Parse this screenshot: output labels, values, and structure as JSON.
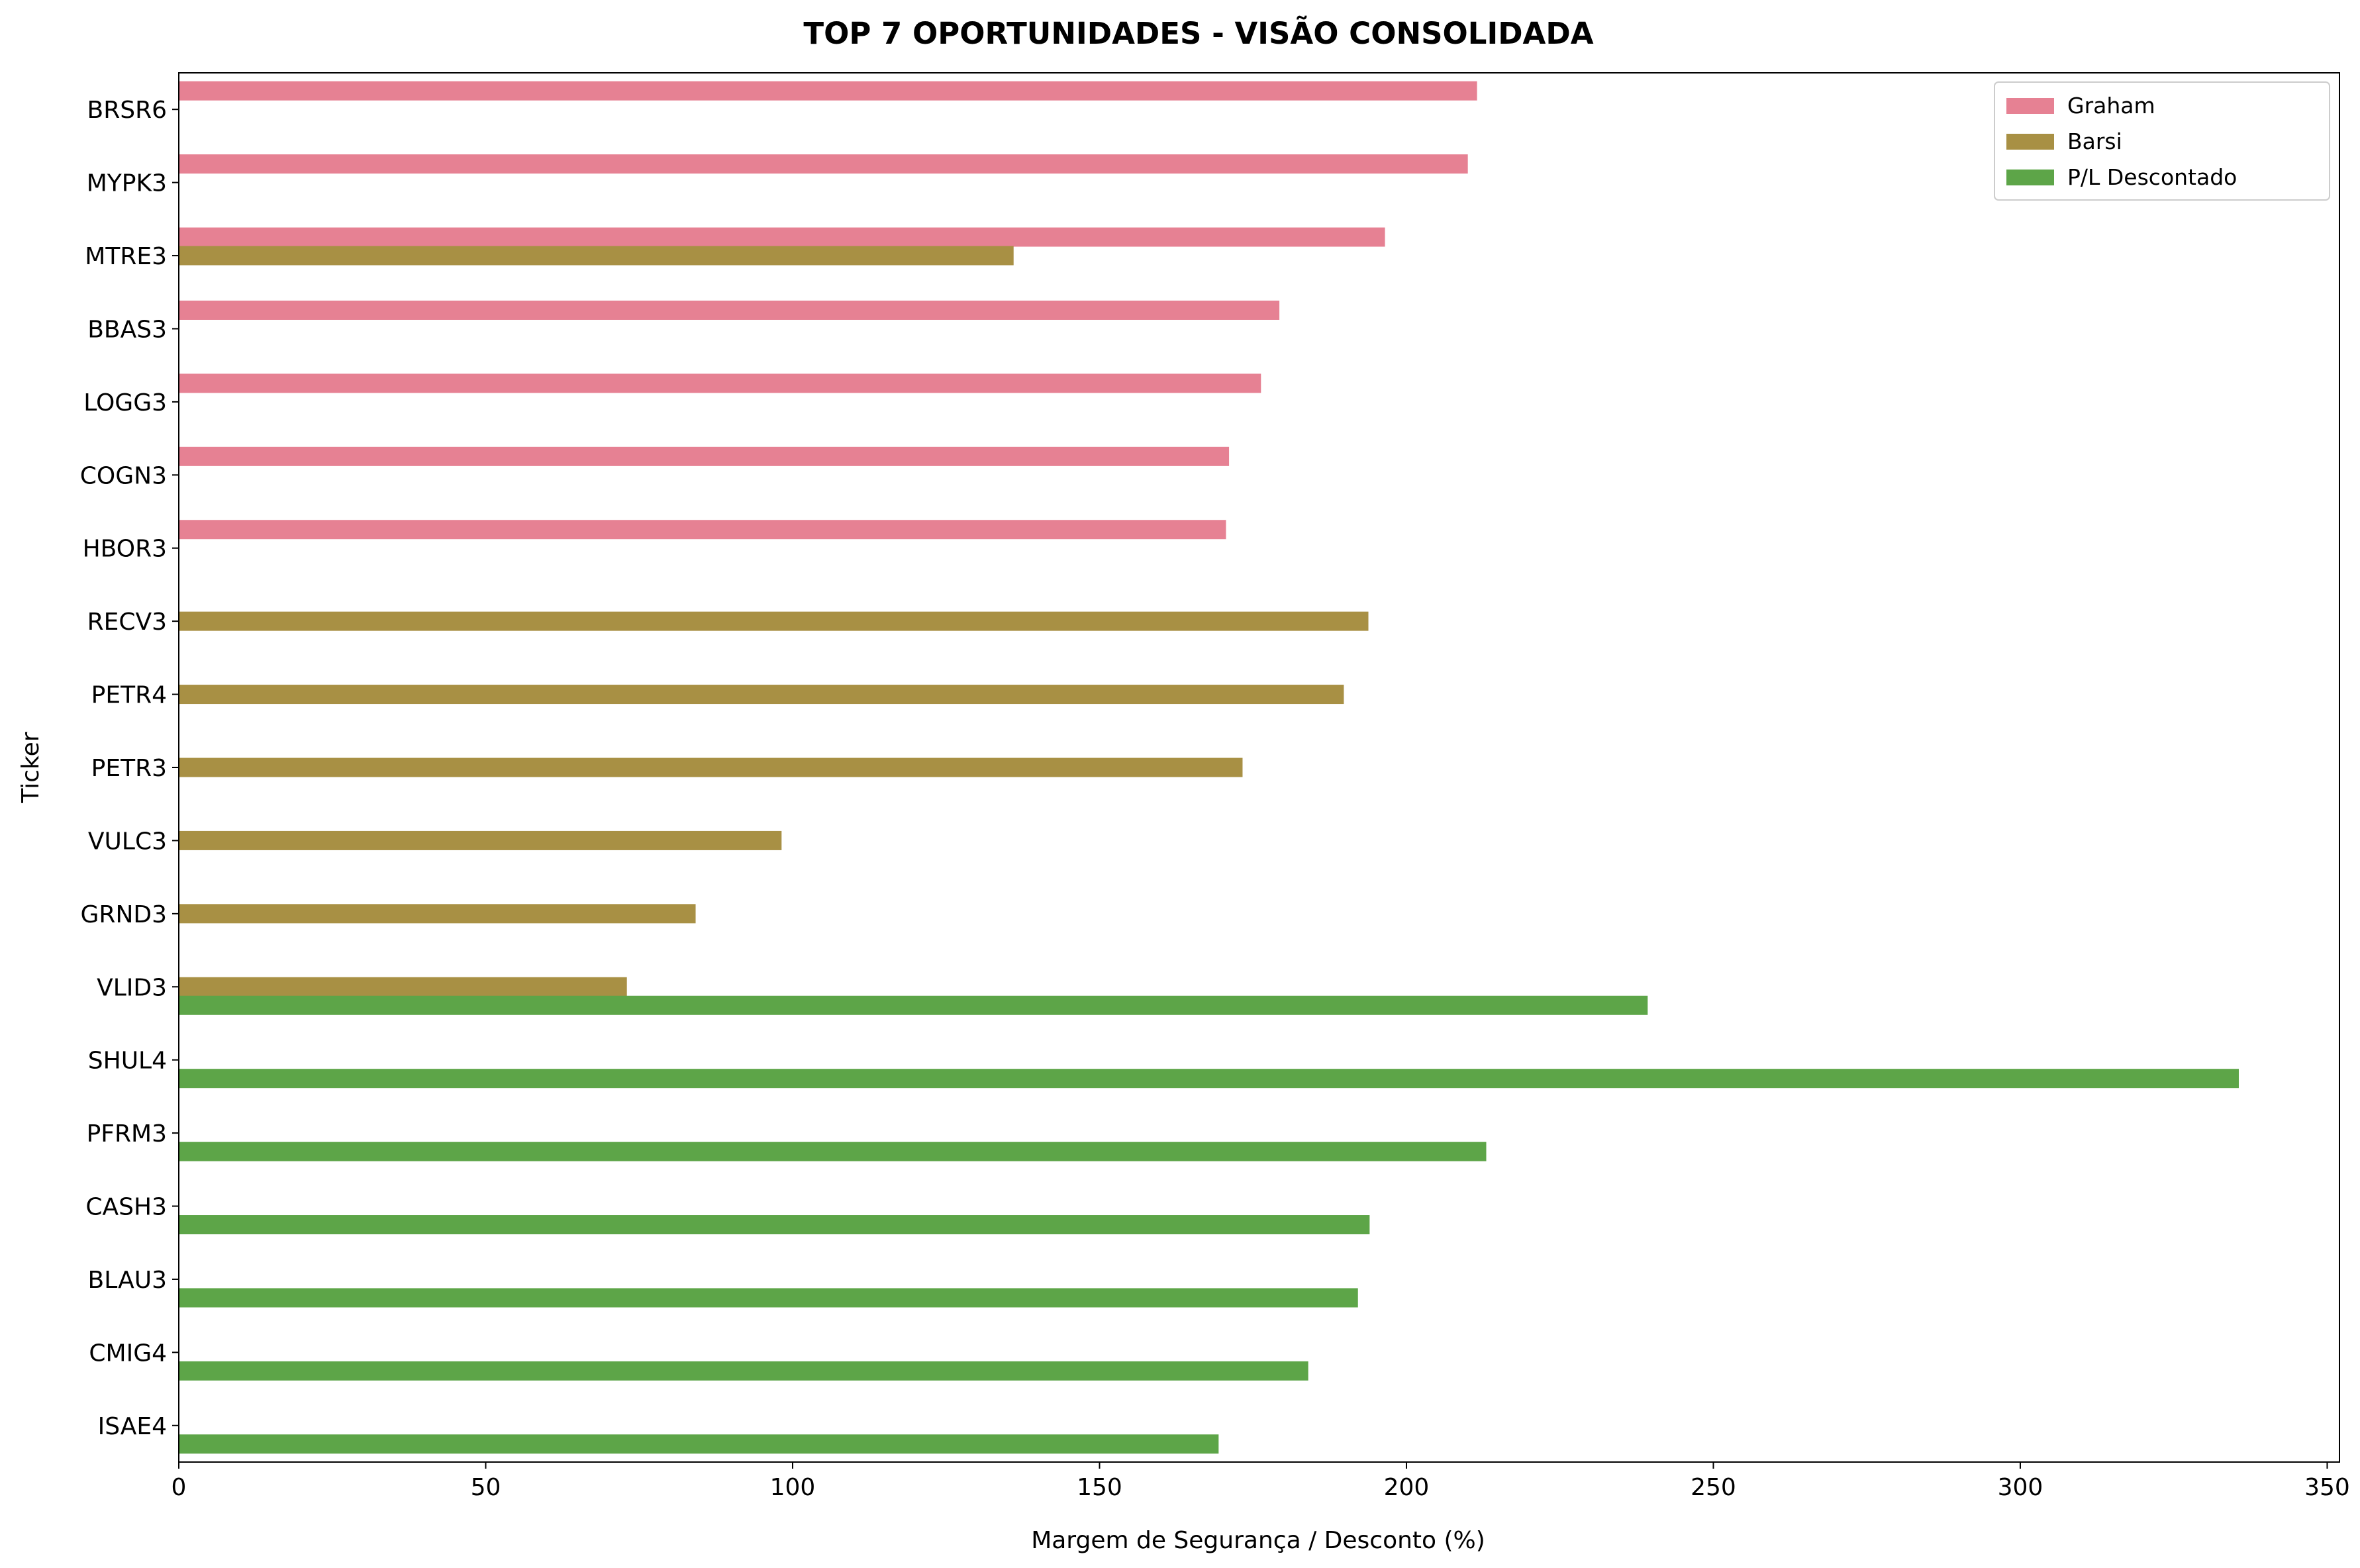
{
  "chart_data": {
    "type": "bar",
    "orientation": "horizontal",
    "title": "TOP 7 OPORTUNIDADES - VISÃO CONSOLIDADA",
    "xlabel": "Margem de Segurança / Desconto (%)",
    "ylabel": "Ticker",
    "xlim": [
      0,
      352
    ],
    "xticks": [
      "0",
      "50",
      "100",
      "150",
      "200",
      "250",
      "300",
      "350"
    ],
    "grid": false,
    "legend_position": "top-right",
    "categories": [
      "BRSR6",
      "MYPK3",
      "MTRE3",
      "BBAS3",
      "LOGG3",
      "COGN3",
      "HBOR3",
      "RECV3",
      "PETR4",
      "PETR3",
      "VULC3",
      "GRND3",
      "VLID3",
      "SHUL4",
      "PFRM3",
      "CASH3",
      "BLAU3",
      "CMIG4",
      "ISAE4"
    ],
    "series": [
      {
        "name": "Graham",
        "color": "#e68193",
        "values": [
          211.5,
          210,
          196.5,
          179.3,
          176.3,
          171.1,
          170.6,
          null,
          null,
          null,
          null,
          null,
          null,
          null,
          null,
          null,
          null,
          null,
          null
        ]
      },
      {
        "name": "Barsi",
        "color": "#a89044",
        "values": [
          null,
          null,
          136,
          null,
          null,
          null,
          null,
          193.8,
          189.8,
          173.3,
          98.2,
          84.2,
          73,
          null,
          null,
          null,
          null,
          null,
          null
        ]
      },
      {
        "name": "P/L Descontado",
        "color": "#5da548",
        "values": [
          null,
          null,
          null,
          null,
          null,
          null,
          null,
          null,
          null,
          null,
          null,
          null,
          239.3,
          335.6,
          213,
          194,
          192.1,
          184,
          169.4
        ]
      }
    ]
  }
}
